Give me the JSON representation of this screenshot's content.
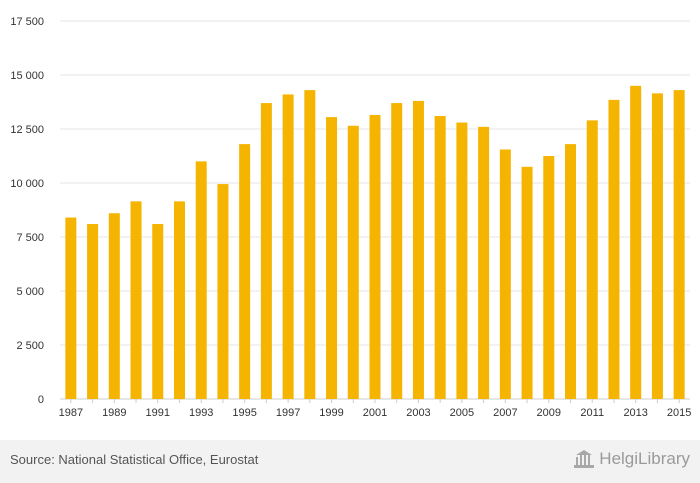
{
  "chart_data": {
    "type": "bar",
    "categories": [
      "1987",
      "1988",
      "1989",
      "1990",
      "1991",
      "1992",
      "1993",
      "1994",
      "1995",
      "1996",
      "1997",
      "1998",
      "1999",
      "2000",
      "2001",
      "2002",
      "2003",
      "2004",
      "2005",
      "2006",
      "2007",
      "2008",
      "2009",
      "2010",
      "2011",
      "2012",
      "2013",
      "2014",
      "2015"
    ],
    "values": [
      8400,
      8100,
      8600,
      9150,
      8100,
      9150,
      11000,
      9950,
      11800,
      13700,
      14100,
      14300,
      13050,
      12650,
      13150,
      13700,
      13800,
      13100,
      12800,
      12600,
      11550,
      10750,
      11250,
      11800,
      12900,
      13850,
      14500,
      14150,
      14300
    ],
    "x_tick_labels": [
      "1987",
      "1989",
      "1991",
      "1993",
      "1995",
      "1997",
      "1999",
      "2001",
      "2003",
      "2005",
      "2007",
      "2009",
      "2011",
      "2013",
      "2015"
    ],
    "y_ticks": [
      0,
      2500,
      5000,
      7500,
      10000,
      12500,
      15000,
      17500
    ],
    "y_tick_labels": [
      "0",
      "2 500",
      "5 000",
      "7 500",
      "10 000",
      "12 500",
      "15 000",
      "17 500"
    ],
    "ylim": [
      0,
      17500
    ],
    "title": "",
    "xlabel": "",
    "ylabel": "",
    "grid": true,
    "legend": "none",
    "bar_color": "#f5b400",
    "grid_color": "#e6e6e6"
  },
  "footer": {
    "source": "Source: National Statistical Office, Eurostat",
    "logo_text": "HelgiLibrary",
    "logo_icon": "library-building-icon"
  }
}
